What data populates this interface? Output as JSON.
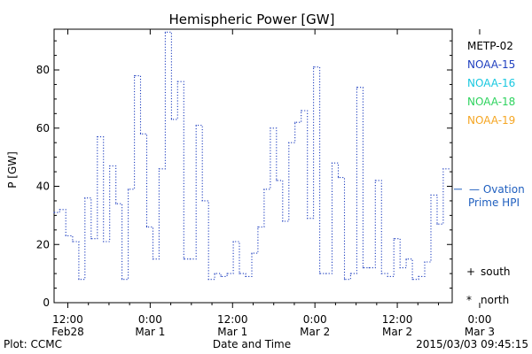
{
  "chart_data": {
    "type": "line",
    "title": "Hemispheric Power [GW]",
    "ylabel": "P [GW]",
    "xlabel": "Date and Time",
    "ylim": [
      0,
      94
    ],
    "yticks": [
      0,
      20,
      40,
      60,
      80
    ],
    "xlim_hours": [
      -14,
      44
    ],
    "xticks": [
      {
        "h": -12,
        "top": "12:00",
        "bottom": "Feb28"
      },
      {
        "h": 0,
        "top": "0:00",
        "bottom": "Mar 1"
      },
      {
        "h": 12,
        "top": "12:00",
        "bottom": "Mar 1"
      },
      {
        "h": 24,
        "top": "0:00",
        "bottom": "Mar 2"
      },
      {
        "h": 36,
        "top": "12:00",
        "bottom": "Mar 2"
      },
      {
        "h": 48,
        "top": "0:00",
        "bottom": "Mar 3"
      }
    ],
    "legend": [
      {
        "name": "METP-02",
        "color": "#000000"
      },
      {
        "name": "NOAA-15",
        "color": "#1f3fbf"
      },
      {
        "name": "NOAA-16",
        "color": "#19c8e0"
      },
      {
        "name": "NOAA-18",
        "color": "#2ed35e"
      },
      {
        "name": "NOAA-19",
        "color": "#f5a623"
      }
    ],
    "ovation": {
      "label_line1": "— Ovation",
      "label_line2": "Prime HPI",
      "color": "#1f5fbf",
      "value": 39
    },
    "markers": [
      {
        "symbol": "+",
        "text": "south"
      },
      {
        "symbol": "*",
        "text": "north"
      }
    ],
    "series": [
      {
        "name": "NOAA-15",
        "color": "#1f3fbf",
        "style": "dotted-step",
        "x_hours": [
          -14.0,
          -13.2,
          -12.3,
          -11.3,
          -10.4,
          -9.5,
          -8.6,
          -7.7,
          -6.8,
          -5.9,
          -5.0,
          -4.1,
          -3.2,
          -2.3,
          -1.4,
          -0.5,
          0.4,
          1.3,
          2.2,
          3.1,
          4.0,
          4.9,
          5.8,
          6.7,
          7.6,
          8.5,
          9.4,
          10.3,
          11.2,
          12.1,
          13.0,
          13.9,
          14.8,
          15.7,
          16.6,
          17.5,
          18.4,
          19.3,
          20.2,
          21.1,
          22.0,
          22.9,
          23.8,
          24.7,
          25.6,
          26.5,
          27.4,
          28.3,
          29.2,
          30.1,
          31.0,
          31.9,
          32.8,
          33.7,
          34.6,
          35.5,
          36.4,
          37.3,
          38.2,
          39.1,
          40.0,
          40.9,
          41.8,
          42.7
        ],
        "values": [
          31,
          32,
          23,
          21,
          8,
          36,
          22,
          57,
          21,
          47,
          34,
          8,
          39,
          78,
          58,
          26,
          15,
          46,
          93,
          63,
          76,
          15,
          15,
          61,
          35,
          8,
          10,
          9,
          10,
          21,
          10,
          9,
          17,
          26,
          39,
          60,
          42,
          28,
          55,
          62,
          66,
          29,
          81,
          10,
          10,
          48,
          43,
          8,
          10,
          74,
          12,
          12,
          42,
          10,
          9,
          22,
          12,
          15,
          8,
          9,
          14,
          37,
          27,
          46
        ]
      }
    ]
  },
  "footer": {
    "left": "Plot: CCMC",
    "right": "2015/03/03 09:45:15"
  }
}
